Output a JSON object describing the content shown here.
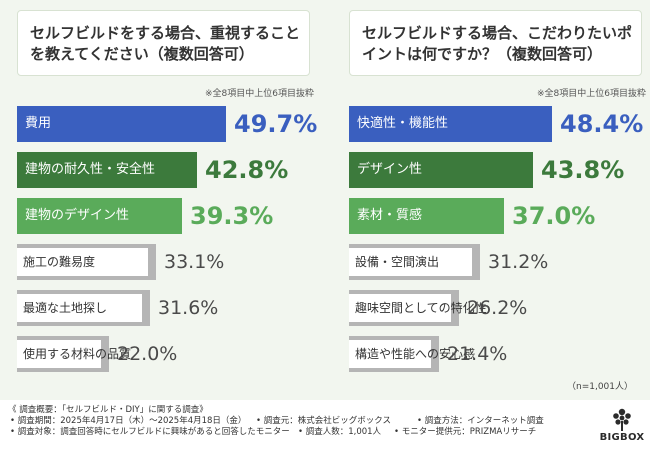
{
  "charts": [
    {
      "question": "セルフビルドをする場合、重視することを教えてください（複数回答可）",
      "note": "※全8項目中上位6項目抜粋",
      "chart_data": {
        "type": "bar",
        "orientation": "horizontal",
        "categories": [
          "費用",
          "建物の耐久性・安全性",
          "建物のデザイン性",
          "施工の難易度",
          "最適な土地探し",
          "使用する材料の品質"
        ],
        "values": [
          49.7,
          42.8,
          39.3,
          33.1,
          31.6,
          22.0
        ],
        "value_labels": [
          "49.7%",
          "42.8%",
          "39.3%",
          "33.1%",
          "31.6%",
          "22.0%"
        ],
        "unit": "%"
      }
    },
    {
      "question": "セルフビルドする場合、こだわりたいポイントは何ですか？（複数回答可）",
      "note": "※全8項目中上位6項目抜粋",
      "chart_data": {
        "type": "bar",
        "orientation": "horizontal",
        "categories": [
          "快適性・機能性",
          "デザイン性",
          "素材・質感",
          "設備・空間演出",
          "趣味空間としての特化性",
          "構造や性能への安心感"
        ],
        "values": [
          48.4,
          43.8,
          37.0,
          31.2,
          26.2,
          21.4
        ],
        "value_labels": [
          "48.4%",
          "43.8%",
          "37.0%",
          "31.2%",
          "26.2%",
          "21.4%"
        ],
        "unit": "%"
      }
    }
  ],
  "colors": {
    "rank1": "#3a5fbf",
    "rank2": "#3c7a3c",
    "rank3": "#5aab5a",
    "rest": "#b5b5b5",
    "rest_value": "#4a4a4a"
  },
  "sample_size": "（n=1,001人）",
  "footer": {
    "title": "《 調査概要：「セルフビルド・DIY」に関する調査》",
    "period": "• 調査期間：2025年4月17日（木）～2025年4月18日（金）",
    "source": "• 調査元：株式会社ビッグボックス",
    "method": "• 調査方法：インターネット調査",
    "target": "• 調査対象：調査回答時にセルフビルドに興味があると回答したモニター",
    "count": "• 調査人数：1,001人",
    "provider": "• モニター提供元：PRIZMAリサーチ"
  },
  "logo": {
    "text": "BIGBOX",
    "icon": "tree-icon"
  }
}
